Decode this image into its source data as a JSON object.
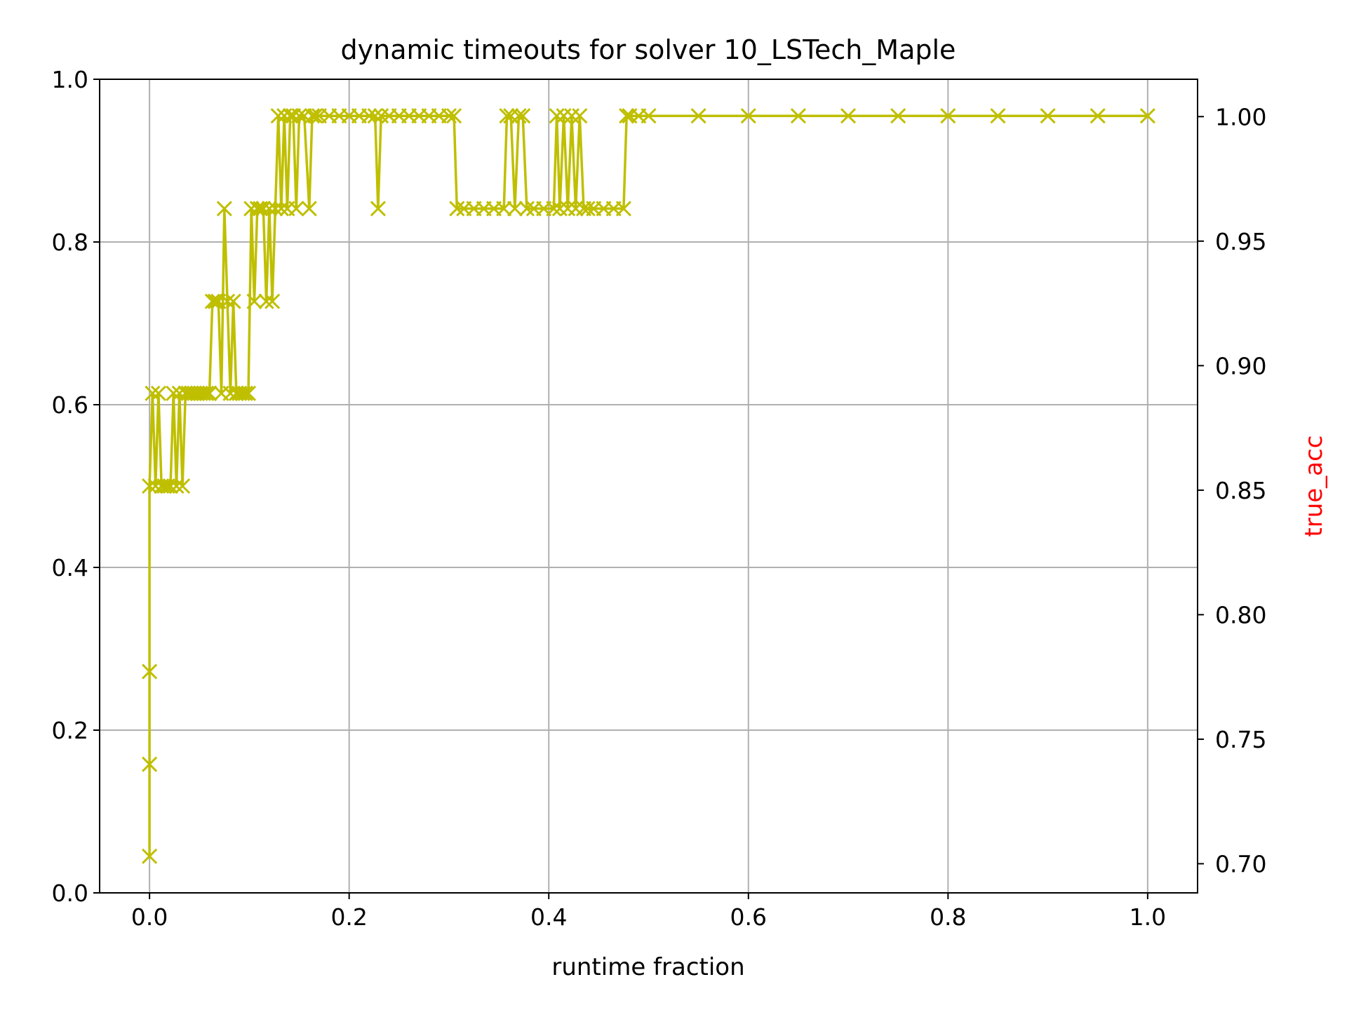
{
  "chart_data": {
    "type": "line",
    "title": "dynamic timeouts for solver 10_LSTech_Maple",
    "xlabel": "runtime fraction",
    "ylabel": "",
    "ylabel_right": "true_acc",
    "ylabel_right_color": "#ff0000",
    "series_color": "#bfbf00",
    "marker": "x",
    "grid": true,
    "xlim": [
      -0.05,
      1.05
    ],
    "ylim": [
      0.0,
      1.0
    ],
    "ylim_right": [
      0.6883,
      1.015
    ],
    "x_ticks": [
      "0.0",
      "0.2",
      "0.4",
      "0.6",
      "0.8",
      "1.0"
    ],
    "y_ticks": [
      "0.0",
      "0.2",
      "0.4",
      "0.6",
      "0.8",
      "1.0"
    ],
    "y_ticks_right": [
      "0.70",
      "0.75",
      "0.80",
      "0.85",
      "0.90",
      "0.95",
      "1.00"
    ],
    "series": [
      {
        "x": [
          0.0,
          0.0,
          0.0,
          0.0,
          0.003,
          0.006,
          0.009,
          0.012,
          0.015,
          0.018,
          0.021,
          0.024,
          0.027,
          0.03,
          0.033,
          0.036,
          0.039,
          0.042,
          0.045,
          0.048,
          0.051,
          0.054,
          0.057,
          0.06,
          0.063,
          0.066,
          0.069,
          0.072,
          0.075,
          0.078,
          0.081,
          0.084,
          0.087,
          0.09,
          0.093,
          0.096,
          0.099,
          0.102,
          0.105,
          0.108,
          0.111,
          0.114,
          0.117,
          0.12,
          0.123,
          0.126,
          0.129,
          0.132,
          0.135,
          0.138,
          0.141,
          0.144,
          0.147,
          0.15,
          0.155,
          0.16,
          0.163,
          0.166,
          0.17,
          0.18,
          0.19,
          0.2,
          0.21,
          0.22,
          0.226,
          0.229,
          0.232,
          0.24,
          0.25,
          0.26,
          0.27,
          0.28,
          0.29,
          0.3,
          0.305,
          0.308,
          0.315,
          0.325,
          0.335,
          0.345,
          0.355,
          0.358,
          0.362,
          0.366,
          0.37,
          0.374,
          0.378,
          0.385,
          0.395,
          0.405,
          0.408,
          0.411,
          0.415,
          0.419,
          0.423,
          0.427,
          0.431,
          0.435,
          0.439,
          0.445,
          0.455,
          0.465,
          0.475,
          0.478,
          0.481,
          0.49,
          0.5,
          0.55,
          0.6,
          0.65,
          0.7,
          0.75,
          0.8,
          0.85,
          0.9,
          0.95,
          1.0
        ],
        "values": [
          0.045,
          0.158,
          0.272,
          0.5,
          0.614,
          0.5,
          0.614,
          0.5,
          0.5,
          0.5,
          0.5,
          0.614,
          0.5,
          0.614,
          0.5,
          0.614,
          0.614,
          0.614,
          0.614,
          0.614,
          0.614,
          0.614,
          0.614,
          0.614,
          0.727,
          0.727,
          0.727,
          0.614,
          0.841,
          0.727,
          0.614,
          0.727,
          0.614,
          0.614,
          0.614,
          0.614,
          0.614,
          0.841,
          0.727,
          0.841,
          0.841,
          0.841,
          0.727,
          0.841,
          0.727,
          0.841,
          0.955,
          0.841,
          0.955,
          0.841,
          0.955,
          0.955,
          0.841,
          0.955,
          0.955,
          0.841,
          0.955,
          0.955,
          0.955,
          0.955,
          0.955,
          0.955,
          0.955,
          0.955,
          0.955,
          0.841,
          0.955,
          0.955,
          0.955,
          0.955,
          0.955,
          0.955,
          0.955,
          0.955,
          0.955,
          0.841,
          0.841,
          0.841,
          0.841,
          0.841,
          0.841,
          0.955,
          0.955,
          0.841,
          0.955,
          0.955,
          0.841,
          0.841,
          0.841,
          0.841,
          0.955,
          0.841,
          0.955,
          0.841,
          0.955,
          0.841,
          0.955,
          0.841,
          0.841,
          0.841,
          0.841,
          0.841,
          0.841,
          0.955,
          0.955,
          0.955,
          0.955,
          0.955,
          0.955,
          0.955,
          0.955,
          0.955,
          0.955,
          0.955,
          0.955,
          0.955,
          0.955
        ]
      }
    ]
  }
}
